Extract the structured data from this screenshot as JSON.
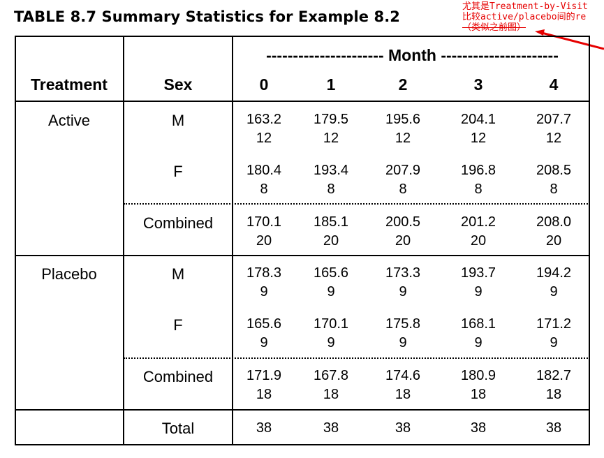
{
  "caption": "TABLE 8.7  Summary Statistics for Example 8.2",
  "annotation": {
    "line1": "尤其是Treatment-by-Visit",
    "line2": "比较active/placebo间的re",
    "line3": "（类似之前图）"
  },
  "headers": {
    "treatment": "Treatment",
    "sex": "Sex",
    "month_group": "---------------------- Month ----------------------",
    "months": [
      "0",
      "1",
      "2",
      "3",
      "4"
    ]
  },
  "groups": [
    {
      "treatment": "Active",
      "rows": [
        {
          "sex": "M",
          "means": [
            "163.2",
            "179.5",
            "195.6",
            "204.1",
            "207.7"
          ],
          "ns": [
            "12",
            "12",
            "12",
            "12",
            "12"
          ]
        },
        {
          "sex": "F",
          "means": [
            "180.4",
            "193.4",
            "207.9",
            "196.8",
            "208.5"
          ],
          "ns": [
            "8",
            "8",
            "8",
            "8",
            "8"
          ]
        },
        {
          "sex": "Combined",
          "means": [
            "170.1",
            "185.1",
            "200.5",
            "201.2",
            "208.0"
          ],
          "ns": [
            "20",
            "20",
            "20",
            "20",
            "20"
          ]
        }
      ]
    },
    {
      "treatment": "Placebo",
      "rows": [
        {
          "sex": "M",
          "means": [
            "178.3",
            "165.6",
            "173.3",
            "193.7",
            "194.2"
          ],
          "ns": [
            "9",
            "9",
            "9",
            "9",
            "9"
          ]
        },
        {
          "sex": "F",
          "means": [
            "165.6",
            "170.1",
            "175.8",
            "168.1",
            "171.2"
          ],
          "ns": [
            "9",
            "9",
            "9",
            "9",
            "9"
          ]
        },
        {
          "sex": "Combined",
          "means": [
            "171.9",
            "167.8",
            "174.6",
            "180.9",
            "182.7"
          ],
          "ns": [
            "18",
            "18",
            "18",
            "18",
            "18"
          ]
        }
      ]
    }
  ],
  "total": {
    "label": "Total",
    "values": [
      "38",
      "38",
      "38",
      "38",
      "38"
    ]
  },
  "colors": {
    "annotation": "#e60000",
    "border": "#000000"
  }
}
